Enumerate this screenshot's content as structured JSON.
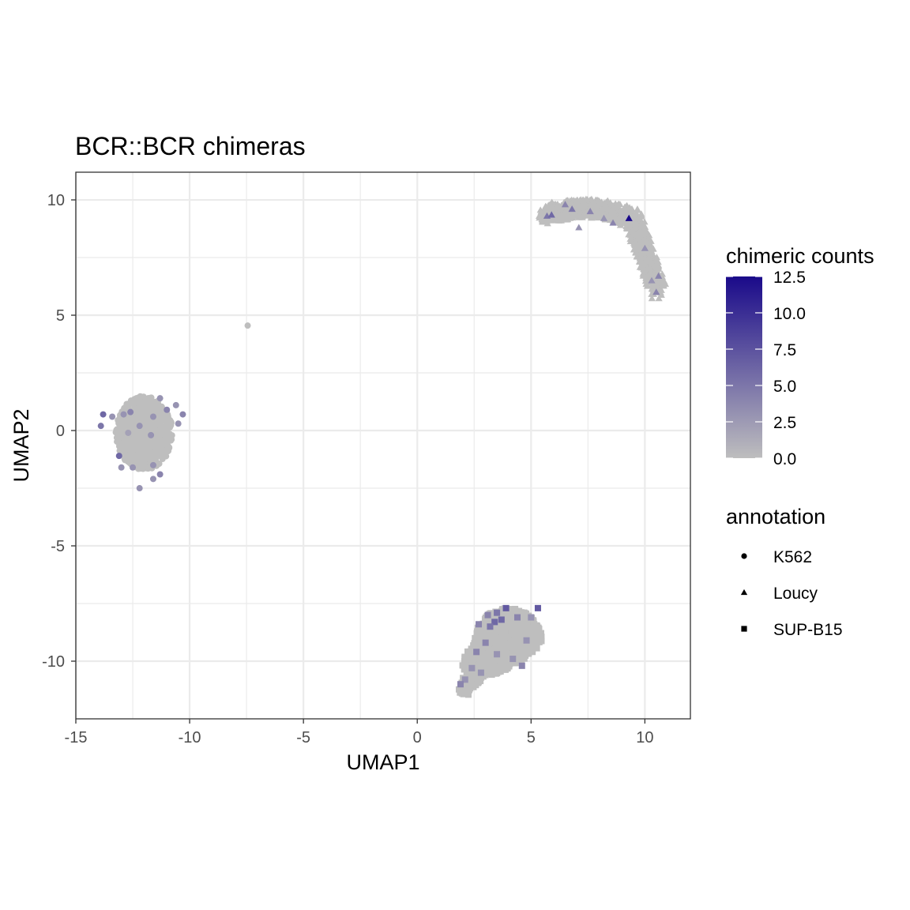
{
  "chart_data": {
    "type": "scatter",
    "title": "BCR::BCR chimeras",
    "xlabel": "UMAP1",
    "ylabel": "UMAP2",
    "xlim": [
      -15,
      12
    ],
    "ylim": [
      -12.5,
      11.2
    ],
    "x_ticks": [
      -15,
      -10,
      -5,
      0,
      5,
      10
    ],
    "x_tick_labels": [
      "-15",
      "-10",
      "-5",
      "0",
      "5",
      "10"
    ],
    "y_ticks": [
      -10,
      -5,
      0,
      5,
      10
    ],
    "y_tick_labels": [
      "-10",
      "-5",
      "0",
      "5",
      "10"
    ],
    "grid": true,
    "color_scale": {
      "title": "chimeric counts",
      "min": 0,
      "max": 12.5,
      "low_color": "#bebebe",
      "high_color": "#1a0a8a",
      "ticks": [
        12.5,
        10.0,
        7.5,
        5.0,
        2.5,
        0.0
      ],
      "tick_labels": [
        "12.5",
        "10.0",
        "7.5",
        "5.0",
        "2.5",
        "0.0"
      ]
    },
    "shape_legend": {
      "title": "annotation",
      "entries": [
        {
          "label": "K562",
          "shape": "circle"
        },
        {
          "label": "Loucy",
          "shape": "triangle"
        },
        {
          "label": "SUP-B15",
          "shape": "square"
        }
      ]
    },
    "legend_position": "right",
    "clusters": [
      {
        "name": "K562",
        "shape": "circle",
        "center": [
          -12.0,
          -0.1
        ],
        "extent": [
          1.25,
          1.6
        ]
      },
      {
        "name": "Loucy",
        "shape": "triangle",
        "arc": true,
        "extent": [
          5.7,
          10.6,
          6.0,
          10.0
        ]
      },
      {
        "name": "SUP-B15",
        "shape": "square",
        "center": [
          4.0,
          -9.2
        ],
        "extent": [
          1.5,
          1.5
        ]
      }
    ],
    "highlight_points": [
      {
        "x": -13.8,
        "y": 0.7,
        "count": 6,
        "shape": "circle"
      },
      {
        "x": -13.4,
        "y": 0.6,
        "count": 3,
        "shape": "circle"
      },
      {
        "x": -13.9,
        "y": 0.2,
        "count": 5,
        "shape": "circle"
      },
      {
        "x": -12.6,
        "y": 0.8,
        "count": 4,
        "shape": "circle"
      },
      {
        "x": -12.9,
        "y": 0.7,
        "count": 3,
        "shape": "circle"
      },
      {
        "x": -12.2,
        "y": 0.2,
        "count": 3,
        "shape": "circle"
      },
      {
        "x": -11.3,
        "y": 1.4,
        "count": 3,
        "shape": "circle"
      },
      {
        "x": -11.0,
        "y": 0.9,
        "count": 4,
        "shape": "circle"
      },
      {
        "x": -10.6,
        "y": 1.1,
        "count": 3,
        "shape": "circle"
      },
      {
        "x": -10.3,
        "y": 0.7,
        "count": 4,
        "shape": "circle"
      },
      {
        "x": -10.5,
        "y": 0.3,
        "count": 3,
        "shape": "circle"
      },
      {
        "x": -11.6,
        "y": 0.6,
        "count": 3,
        "shape": "circle"
      },
      {
        "x": -12.7,
        "y": -0.1,
        "count": 2,
        "shape": "circle"
      },
      {
        "x": -11.7,
        "y": -0.2,
        "count": 3,
        "shape": "circle"
      },
      {
        "x": -13.1,
        "y": -1.1,
        "count": 6,
        "shape": "circle"
      },
      {
        "x": -12.5,
        "y": -1.6,
        "count": 3,
        "shape": "circle"
      },
      {
        "x": -13.0,
        "y": -1.6,
        "count": 3,
        "shape": "circle"
      },
      {
        "x": -11.6,
        "y": -1.5,
        "count": 3,
        "shape": "circle"
      },
      {
        "x": -11.3,
        "y": -1.9,
        "count": 4,
        "shape": "circle"
      },
      {
        "x": -11.6,
        "y": -2.1,
        "count": 3,
        "shape": "circle"
      },
      {
        "x": -12.2,
        "y": -2.5,
        "count": 3,
        "shape": "circle"
      },
      {
        "x": -7.45,
        "y": 4.55,
        "count": 0,
        "shape": "circle"
      },
      {
        "x": 5.7,
        "y": 9.3,
        "count": 5,
        "shape": "triangle"
      },
      {
        "x": 5.9,
        "y": 9.35,
        "count": 6,
        "shape": "triangle"
      },
      {
        "x": 6.5,
        "y": 9.8,
        "count": 4,
        "shape": "triangle"
      },
      {
        "x": 6.8,
        "y": 9.6,
        "count": 5,
        "shape": "triangle"
      },
      {
        "x": 7.6,
        "y": 9.5,
        "count": 4,
        "shape": "triangle"
      },
      {
        "x": 8.2,
        "y": 9.2,
        "count": 3,
        "shape": "triangle"
      },
      {
        "x": 8.6,
        "y": 9.0,
        "count": 4,
        "shape": "triangle"
      },
      {
        "x": 9.3,
        "y": 9.2,
        "count": 12.5,
        "shape": "triangle"
      },
      {
        "x": 7.1,
        "y": 8.8,
        "count": 3,
        "shape": "triangle"
      },
      {
        "x": 10.0,
        "y": 7.9,
        "count": 3,
        "shape": "triangle"
      },
      {
        "x": 10.6,
        "y": 6.7,
        "count": 4,
        "shape": "triangle"
      },
      {
        "x": 10.5,
        "y": 6.0,
        "count": 4,
        "shape": "triangle"
      },
      {
        "x": 10.3,
        "y": 6.5,
        "count": 3,
        "shape": "triangle"
      },
      {
        "x": 3.1,
        "y": -8.0,
        "count": 4,
        "shape": "square"
      },
      {
        "x": 3.4,
        "y": -8.3,
        "count": 6,
        "shape": "square"
      },
      {
        "x": 3.7,
        "y": -8.2,
        "count": 6,
        "shape": "square"
      },
      {
        "x": 3.5,
        "y": -7.9,
        "count": 5,
        "shape": "square"
      },
      {
        "x": 3.9,
        "y": -7.7,
        "count": 7,
        "shape": "square"
      },
      {
        "x": 3.2,
        "y": -8.5,
        "count": 5,
        "shape": "square"
      },
      {
        "x": 2.7,
        "y": -8.4,
        "count": 4,
        "shape": "square"
      },
      {
        "x": 4.4,
        "y": -8.1,
        "count": 4,
        "shape": "square"
      },
      {
        "x": 5.3,
        "y": -7.7,
        "count": 7,
        "shape": "square"
      },
      {
        "x": 5.0,
        "y": -8.1,
        "count": 3,
        "shape": "square"
      },
      {
        "x": 3.0,
        "y": -9.2,
        "count": 4,
        "shape": "square"
      },
      {
        "x": 2.6,
        "y": -9.6,
        "count": 4,
        "shape": "square"
      },
      {
        "x": 3.5,
        "y": -9.7,
        "count": 3,
        "shape": "square"
      },
      {
        "x": 4.2,
        "y": -9.9,
        "count": 3,
        "shape": "square"
      },
      {
        "x": 4.6,
        "y": -10.2,
        "count": 4,
        "shape": "square"
      },
      {
        "x": 2.4,
        "y": -10.3,
        "count": 3,
        "shape": "square"
      },
      {
        "x": 2.1,
        "y": -10.8,
        "count": 3,
        "shape": "square"
      },
      {
        "x": 1.9,
        "y": -11.0,
        "count": 4,
        "shape": "square"
      },
      {
        "x": 4.8,
        "y": -9.1,
        "count": 3,
        "shape": "square"
      },
      {
        "x": 2.8,
        "y": -10.5,
        "count": 3,
        "shape": "square"
      }
    ]
  }
}
